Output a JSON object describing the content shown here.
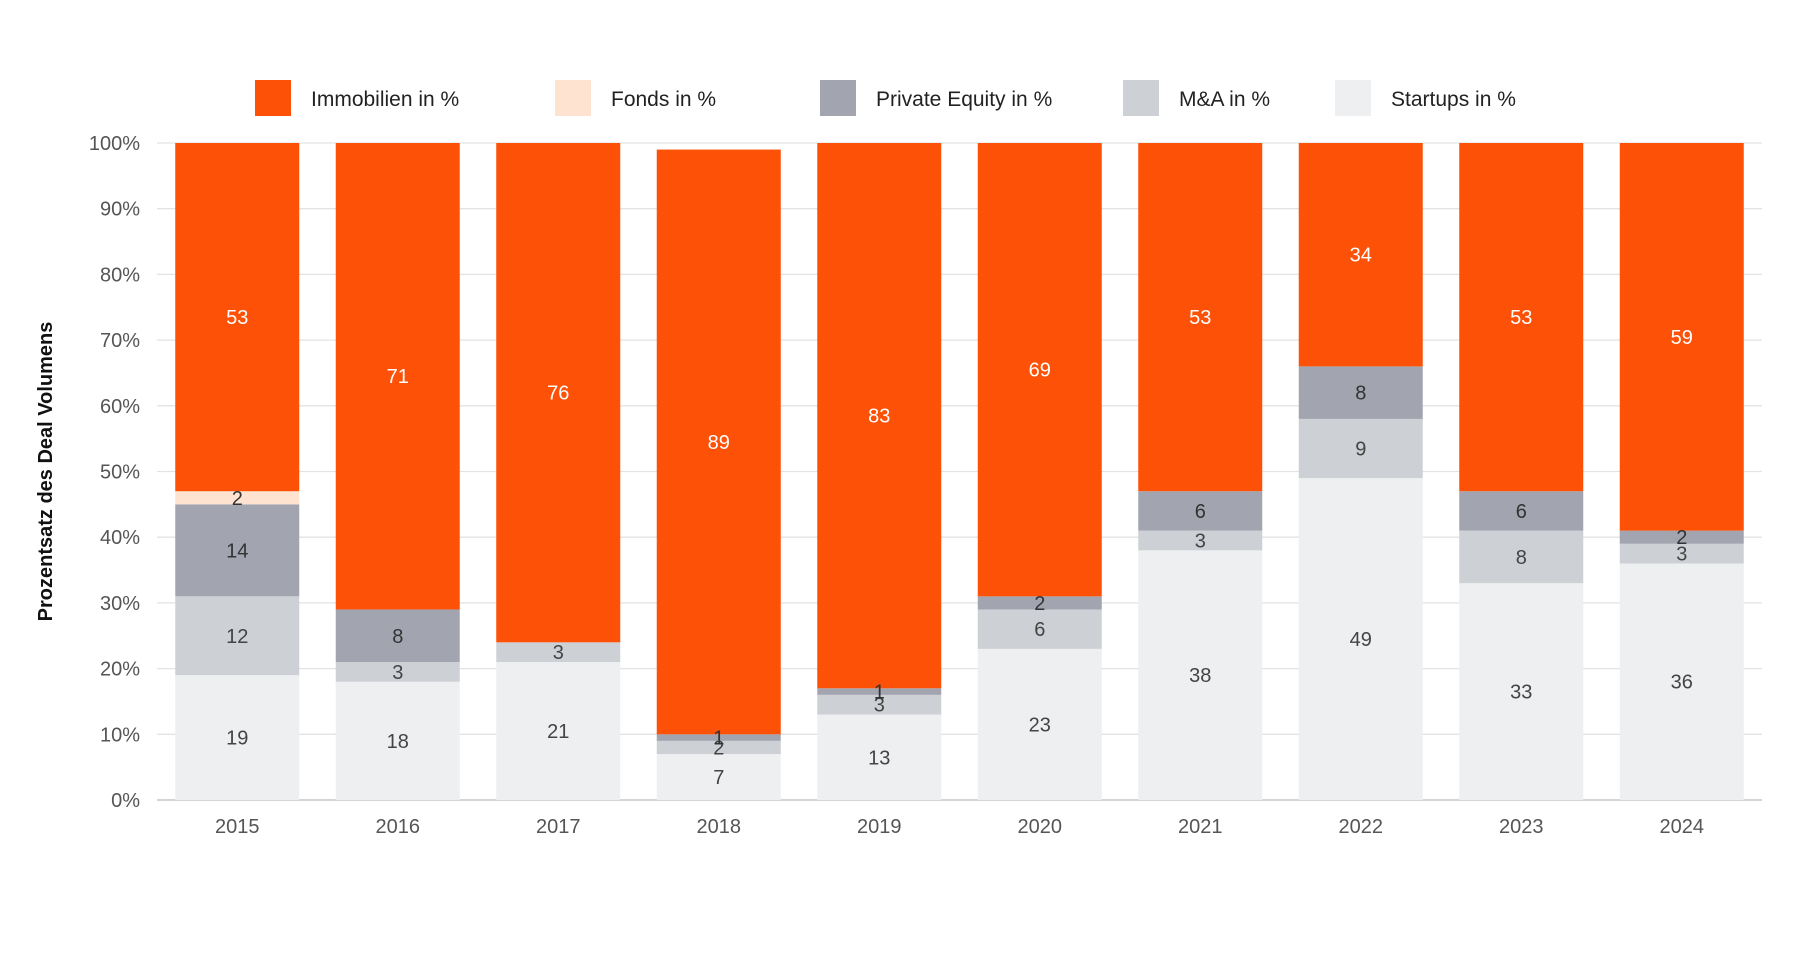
{
  "chart_data": {
    "type": "bar",
    "stacked": true,
    "percent": true,
    "categories": [
      "2015",
      "2016",
      "2017",
      "2018",
      "2019",
      "2020",
      "2021",
      "2022",
      "2023",
      "2024"
    ],
    "series": [
      {
        "name": "Startups in %",
        "color": "#eeeff0",
        "label_color": "#444444",
        "values": [
          19,
          18,
          21,
          7,
          13,
          23,
          38,
          49,
          33,
          36
        ]
      },
      {
        "name": "M&A in %",
        "color": "#cdd1d5",
        "label_color": "#444444",
        "values": [
          12,
          3,
          3,
          2,
          3,
          6,
          3,
          9,
          8,
          3
        ]
      },
      {
        "name": "Private Equity in %",
        "color": "#a2a5b0",
        "label_color": "#333333",
        "values": [
          14,
          8,
          0,
          1,
          1,
          2,
          6,
          8,
          6,
          2
        ]
      },
      {
        "name": "Fonds in %",
        "color": "#fde3d0",
        "label_color": "#333333",
        "values": [
          2,
          0,
          0,
          0,
          0,
          0,
          0,
          0,
          0,
          0
        ]
      },
      {
        "name": "Immobilien in %",
        "color": "#fc5107",
        "label_color": "#ffffff",
        "values": [
          53,
          71,
          76,
          89,
          83,
          69,
          53,
          34,
          53,
          59
        ]
      }
    ],
    "legend_order": [
      "Immobilien in %",
      "Fonds in %",
      "Private Equity in %",
      "M&A in %",
      "Startups in %"
    ],
    "legend_position": "top",
    "ylabel": "Prozentsatz des Deal Volumens",
    "xlabel": "",
    "ylim": [
      0,
      100
    ],
    "yticks": [
      "0%",
      "10%",
      "20%",
      "30%",
      "40%",
      "50%",
      "60%",
      "70%",
      "80%",
      "90%",
      "100%"
    ],
    "grid": true
  }
}
